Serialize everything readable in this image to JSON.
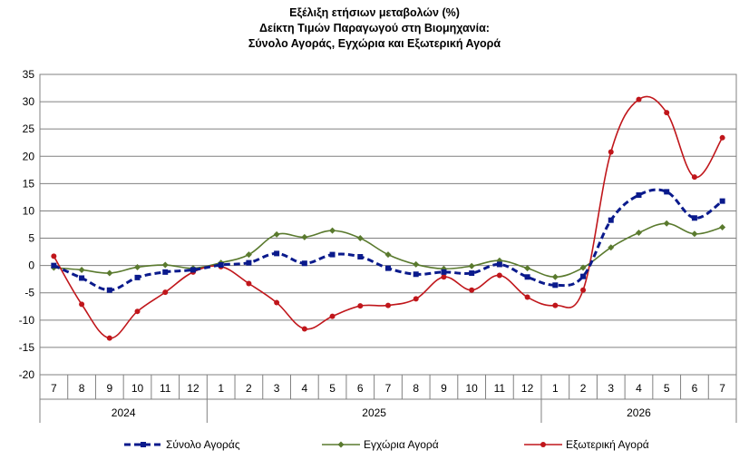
{
  "chart_data": {
    "type": "line",
    "title": [
      "Εξέλιξη ετήσιων μεταβολών (%)",
      "Δείκτη Τιμών Παραγωγού στη Βιομηχανία:",
      "Σύνολο Αγοράς, Εγχώρια και Εξωτερική Αγορά"
    ],
    "categories": [
      "7",
      "8",
      "9",
      "10",
      "11",
      "12",
      "1",
      "2",
      "3",
      "4",
      "5",
      "6",
      "7",
      "8",
      "9",
      "10",
      "11",
      "12",
      "1",
      "2",
      "3",
      "4",
      "5",
      "6",
      "7"
    ],
    "year_groups": [
      {
        "label": "2024",
        "start": 0,
        "end": 5
      },
      {
        "label": "2025",
        "start": 6,
        "end": 17
      },
      {
        "label": "2026",
        "start": 18,
        "end": 24
      }
    ],
    "ylim": [
      -20,
      35
    ],
    "yticks": [
      -20,
      -15,
      -10,
      -5,
      0,
      5,
      10,
      15,
      20,
      25,
      30,
      35
    ],
    "grid": true,
    "legend_position": "bottom",
    "series": [
      {
        "name": "Σύνολο Αγοράς",
        "color": "#0a1a8c",
        "style": "dashed",
        "marker": "square",
        "values": [
          0,
          -2.3,
          -4.5,
          -2.2,
          -1.2,
          -0.8,
          0.1,
          0.5,
          2.2,
          0.4,
          2.0,
          1.6,
          -0.5,
          -1.6,
          -1.2,
          -1.4,
          0.2,
          -2.1,
          -3.6,
          -2.0,
          8.3,
          12.9,
          13.5,
          8.7,
          11.8
        ]
      },
      {
        "name": "Εγχώρια Αγορά",
        "color": "#5a7a2e",
        "style": "solid",
        "marker": "diamond",
        "values": [
          -0.4,
          -0.8,
          -1.4,
          -0.3,
          0.1,
          -0.5,
          0.5,
          2.0,
          5.7,
          5.2,
          6.4,
          5.0,
          2.0,
          0.2,
          -0.6,
          -0.1,
          0.9,
          -0.5,
          -2.1,
          -0.4,
          3.3,
          6.0,
          7.7,
          5.8,
          7.0
        ]
      },
      {
        "name": "Εξωτερική Αγορά",
        "color": "#c0161b",
        "style": "solid",
        "marker": "circle",
        "values": [
          1.7,
          -7.1,
          -13.3,
          -8.4,
          -4.9,
          -1.2,
          -0.2,
          -3.3,
          -6.8,
          -11.6,
          -9.3,
          -7.4,
          -7.3,
          -6.1,
          -2.1,
          -4.5,
          -1.8,
          -5.8,
          -7.3,
          -4.5,
          20.8,
          30.4,
          28.0,
          16.2,
          23.4
        ]
      }
    ]
  }
}
